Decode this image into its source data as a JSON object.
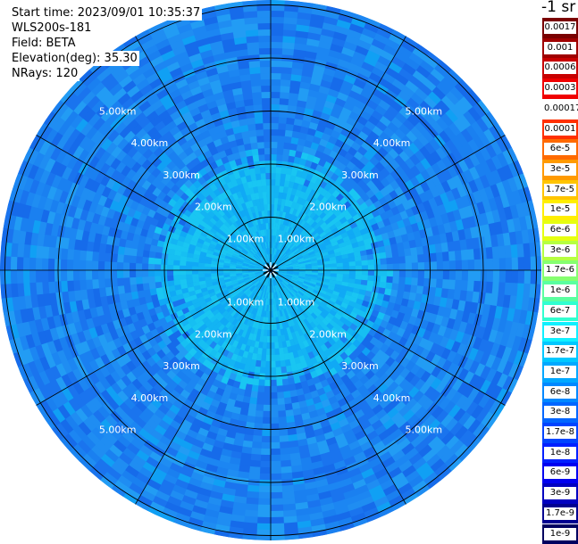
{
  "info": {
    "start_time": "Start time: 2023/09/01 10:35:37",
    "instrument": "WLS200s-181",
    "field": "Field: BETA",
    "elevation": "Elevation(deg): 35.30",
    "nrays": "NRays: 120"
  },
  "colorbar": {
    "unit": "-1 sr",
    "entries": [
      {
        "label": "0.0017",
        "color": "#7a0000"
      },
      {
        "label": "0.001",
        "color": "#a00000"
      },
      {
        "label": "0.0006",
        "color": "#c80000"
      },
      {
        "label": "0.0003",
        "color": "#f00000"
      },
      {
        "label": "0.00017",
        "color": "#ffffff"
      },
      {
        "label": "0.0001",
        "color": "#ff3000"
      },
      {
        "label": "6e-5",
        "color": "#ff6a00"
      },
      {
        "label": "3e-5",
        "color": "#ff9a00"
      },
      {
        "label": "1.7e-5",
        "color": "#ffc400"
      },
      {
        "label": "1e-5",
        "color": "#ffee00"
      },
      {
        "label": "6e-6",
        "color": "#e6ff10"
      },
      {
        "label": "3e-6",
        "color": "#b6ff40"
      },
      {
        "label": "1.7e-6",
        "color": "#86ff70"
      },
      {
        "label": "1e-6",
        "color": "#5affa0"
      },
      {
        "label": "6e-7",
        "color": "#30ffd0"
      },
      {
        "label": "3e-7",
        "color": "#10f0ff"
      },
      {
        "label": "1.7e-7",
        "color": "#00c8ff"
      },
      {
        "label": "1e-7",
        "color": "#00a8ff"
      },
      {
        "label": "6e-8",
        "color": "#0088ff"
      },
      {
        "label": "3e-8",
        "color": "#0066ff"
      },
      {
        "label": "1.7e-8",
        "color": "#0044ff"
      },
      {
        "label": "1e-8",
        "color": "#0020ff"
      },
      {
        "label": "6e-9",
        "color": "#0000f0"
      },
      {
        "label": "3e-9",
        "color": "#0000c0"
      },
      {
        "label": "1.7e-9",
        "color": "#000090"
      },
      {
        "label": "1e-9",
        "color": "#000060"
      }
    ]
  },
  "range_labels": [
    "1.00km",
    "2.00km",
    "3.00km",
    "4.00km",
    "5.00km"
  ]
}
